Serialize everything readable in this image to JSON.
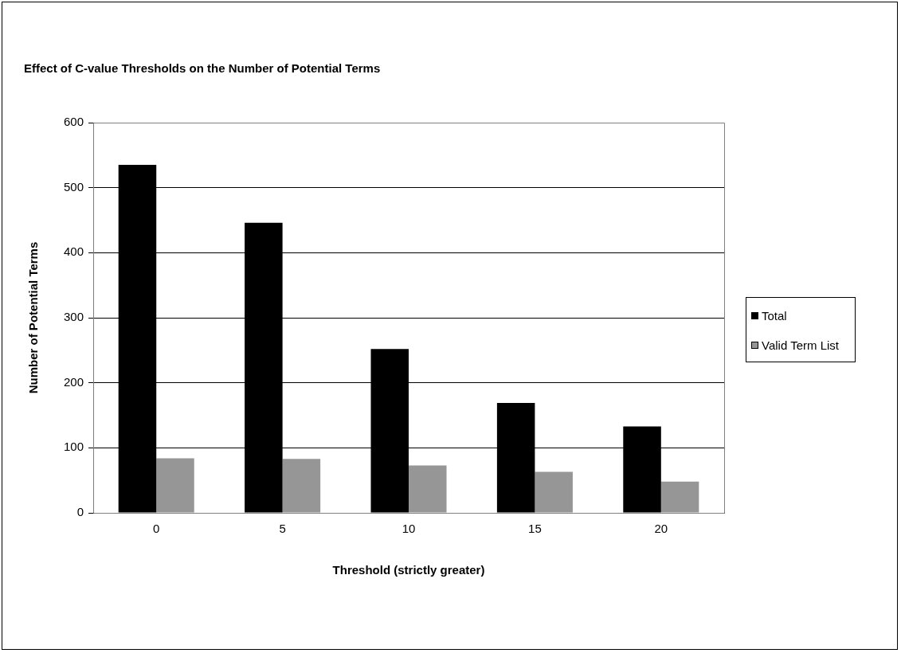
{
  "chart_data": {
    "type": "bar",
    "title": "Effect of C-value Thresholds on the Number of Potential Terms",
    "xlabel": "Threshold (strictly greater)",
    "ylabel": "Number of Potential Terms",
    "categories": [
      "0",
      "5",
      "10",
      "15",
      "20"
    ],
    "series": [
      {
        "name": "Total",
        "color": "#000000",
        "values": [
          535,
          446,
          252,
          169,
          133
        ]
      },
      {
        "name": "Valid Term List",
        "color": "#969696",
        "values": [
          84,
          83,
          73,
          63,
          48
        ]
      }
    ],
    "ylim": [
      0,
      600
    ],
    "yticks": [
      0,
      100,
      200,
      300,
      400,
      500,
      600
    ],
    "grid": "y",
    "legend": "right"
  }
}
